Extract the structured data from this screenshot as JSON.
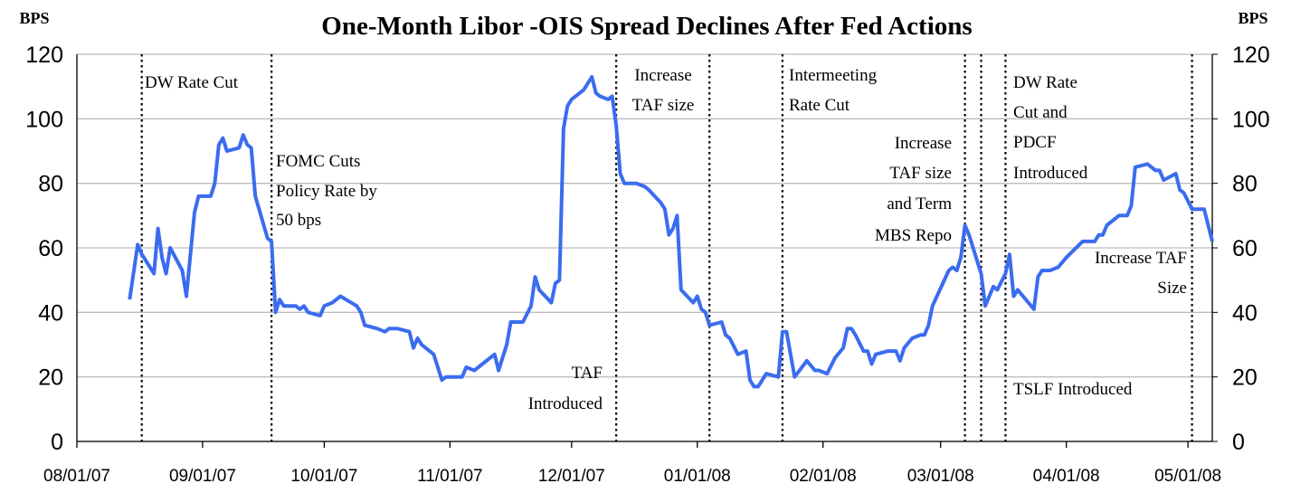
{
  "chart_data": {
    "type": "line",
    "title": "One-Month Libor -OIS Spread Declines After Fed Actions",
    "y_label": "BPS",
    "y2_label": "BPS",
    "xlim": [
      "08/01/07",
      "05/07/08"
    ],
    "xticks": [
      "08/01/07",
      "09/01/07",
      "10/01/07",
      "11/01/07",
      "12/01/07",
      "01/01/08",
      "02/01/08",
      "03/01/08",
      "04/01/08",
      "05/01/08"
    ],
    "ylim": [
      0,
      120
    ],
    "yticks": [
      0,
      20,
      40,
      60,
      80,
      100,
      120
    ],
    "y2lim": [
      0,
      120
    ],
    "y2ticks": [
      0,
      20,
      40,
      60,
      80,
      100,
      120
    ],
    "grid": true,
    "x": [
      "08/14/07",
      "08/16/07",
      "08/17/07",
      "08/20/07",
      "08/21/07",
      "08/22/07",
      "08/23/07",
      "08/24/07",
      "08/27/07",
      "08/28/07",
      "08/30/07",
      "08/31/07",
      "09/03/07",
      "09/04/07",
      "09/05/07",
      "09/06/07",
      "09/07/07",
      "09/10/07",
      "09/11/07",
      "09/12/07",
      "09/13/07",
      "09/14/07",
      "09/17/07",
      "09/18/07",
      "09/19/07",
      "09/20/07",
      "09/21/07",
      "09/24/07",
      "09/25/07",
      "09/26/07",
      "09/27/07",
      "09/30/07",
      "10/01/07",
      "10/03/07",
      "10/05/07",
      "10/09/07",
      "10/10/07",
      "10/11/07",
      "10/14/07",
      "10/16/07",
      "10/17/07",
      "10/19/07",
      "10/22/07",
      "10/23/07",
      "10/24/07",
      "10/25/07",
      "10/28/07",
      "10/30/07",
      "10/31/07",
      "11/02/07",
      "11/04/07",
      "11/05/07",
      "11/07/07",
      "11/12/07",
      "11/13/07",
      "11/15/07",
      "11/16/07",
      "11/19/07",
      "11/21/07",
      "11/22/07",
      "11/23/07",
      "11/26/07",
      "11/27/07",
      "11/28/07",
      "11/29/07",
      "11/30/07",
      "12/01/07",
      "12/03/07",
      "12/04/07",
      "12/06/07",
      "12/07/07",
      "12/08/07",
      "12/10/07",
      "12/11/07",
      "12/12/07",
      "12/13/07",
      "12/14/07",
      "12/17/07",
      "12/19/07",
      "12/20/07",
      "12/23/07",
      "12/24/07",
      "12/25/07",
      "12/26/07",
      "12/27/07",
      "12/28/07",
      "12/31/07",
      "01/01/08",
      "01/02/08",
      "01/03/08",
      "01/04/08",
      "01/07/08",
      "01/08/08",
      "01/09/08",
      "01/11/08",
      "01/13/08",
      "01/14/08",
      "01/15/08",
      "01/16/08",
      "01/18/08",
      "01/21/08",
      "01/22/08",
      "01/23/08",
      "01/25/08",
      "01/28/08",
      "01/30/08",
      "01/31/08",
      "02/02/08",
      "02/04/08",
      "02/06/08",
      "02/07/08",
      "02/08/08",
      "02/09/08",
      "02/11/08",
      "02/12/08",
      "02/13/08",
      "02/14/08",
      "02/17/08",
      "02/19/08",
      "02/20/08",
      "02/21/08",
      "02/23/08",
      "02/25/08",
      "02/26/08",
      "02/27/08",
      "02/28/08",
      "03/03/08",
      "03/04/08",
      "03/05/08",
      "03/06/08",
      "03/07/08",
      "03/08/08",
      "03/11/08",
      "03/12/08",
      "03/14/08",
      "03/15/08",
      "03/17/08",
      "03/18/08",
      "03/19/08",
      "03/20/08",
      "03/24/08",
      "03/25/08",
      "03/26/08",
      "03/28/08",
      "03/30/08",
      "04/01/08",
      "04/05/08",
      "04/08/08",
      "04/09/08",
      "04/10/08",
      "04/11/08",
      "04/14/08",
      "04/16/08",
      "04/17/08",
      "04/18/08",
      "04/21/08",
      "04/23/08",
      "04/24/08",
      "04/25/08",
      "04/28/08",
      "04/29/08",
      "04/30/08",
      "05/02/08",
      "05/05/08",
      "05/07/08"
    ],
    "series": [
      {
        "name": "One-Month Libor-OIS Spread",
        "color": "#3b6cf0",
        "values": [
          44,
          61,
          58,
          52,
          66,
          57,
          52,
          60,
          53,
          45,
          71,
          76,
          76,
          80,
          92,
          94,
          90,
          91,
          95,
          92,
          91,
          76,
          63,
          62,
          40,
          44,
          42,
          42,
          41,
          42,
          40,
          39,
          42,
          43,
          45,
          42,
          40,
          36,
          35,
          34,
          35,
          35,
          34,
          29,
          32,
          30,
          27,
          19,
          20,
          20,
          20,
          23,
          22,
          27,
          22,
          30,
          37,
          37,
          42,
          51,
          47,
          43,
          49,
          50,
          97,
          104,
          106,
          108,
          109,
          113,
          108,
          107,
          106,
          107,
          98,
          83,
          80,
          80,
          79,
          78,
          74,
          72,
          64,
          66,
          70,
          47,
          43,
          45,
          41,
          40,
          36,
          37,
          33,
          32,
          27,
          28,
          19,
          17,
          17,
          21,
          20,
          34,
          34,
          20,
          25,
          22,
          22,
          21,
          26,
          29,
          35,
          35,
          33,
          28,
          28,
          24,
          27,
          28,
          28,
          25,
          29,
          32,
          33,
          33,
          36,
          42,
          53,
          54,
          53,
          57,
          67,
          64,
          52,
          42,
          48,
          47,
          52,
          58,
          45,
          47,
          41,
          51,
          53,
          53,
          54,
          57,
          62,
          62,
          64,
          64,
          67,
          70,
          70,
          73,
          85,
          86,
          84,
          84,
          81,
          83,
          78,
          77,
          72,
          72,
          62
        ]
      }
    ],
    "events": [
      {
        "x": "08/17/07",
        "label": [
          "DW  Rate Cut"
        ]
      },
      {
        "x": "09/18/07",
        "label": [
          "FOMC Cuts",
          "Policy Rate by",
          "50 bps"
        ]
      },
      {
        "x": "12/12/07",
        "label": [
          "TAF",
          "Introduced"
        ]
      },
      {
        "x": "01/04/08",
        "label": [
          "Increase",
          "TAF size"
        ]
      },
      {
        "x": "01/22/08",
        "label": [
          "Intermeeting",
          "Rate Cut"
        ]
      },
      {
        "x": "03/07/08",
        "label": [
          "Increase",
          "TAF size",
          "and Term",
          "MBS Repo"
        ]
      },
      {
        "x": "03/11/08",
        "label": [
          "TSLF Introduced"
        ]
      },
      {
        "x": "03/17/08",
        "label": [
          "DW  Rate",
          "Cut and",
          "PDCF",
          "Introduced"
        ]
      },
      {
        "x": "05/02/08",
        "label": [
          "Increase TAF",
          "Size"
        ]
      }
    ]
  }
}
